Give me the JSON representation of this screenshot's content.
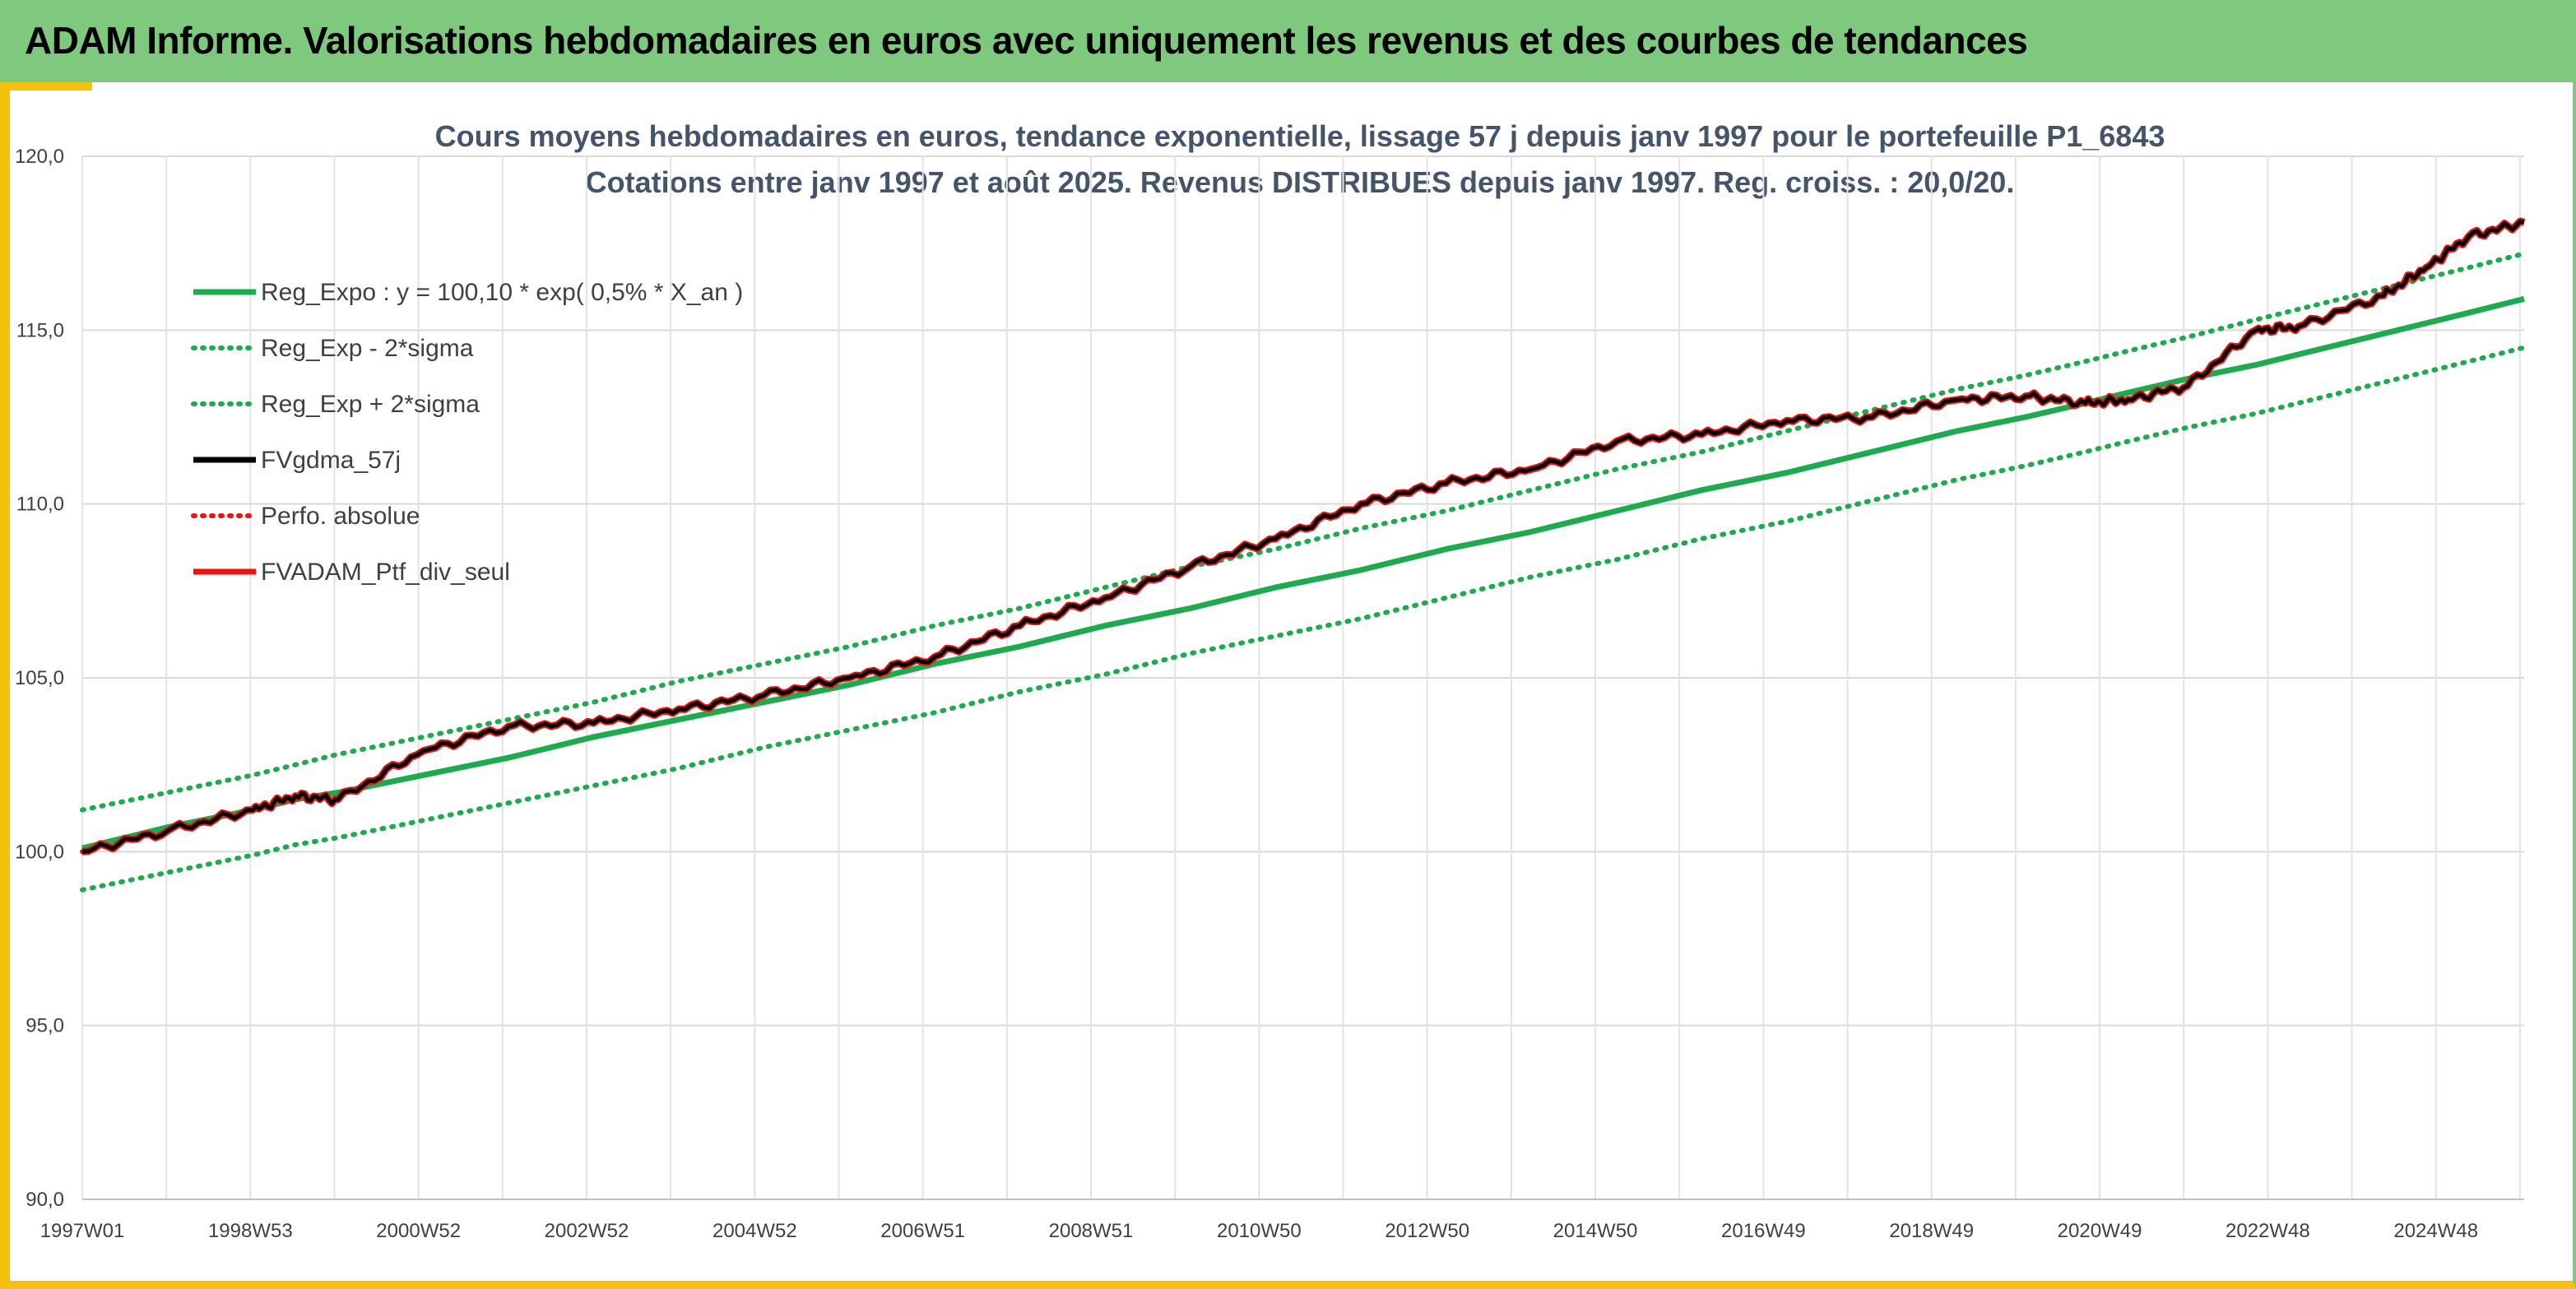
{
  "header": {
    "title": "ADAM Informe. Valorisations hebdomadaires en euros avec uniquement les revenus et des courbes de tendances"
  },
  "colors": {
    "banner": "#7fc97f",
    "frame_accent": "#f4c20d",
    "trend_green": "#1faa4f",
    "series_black": "#000000",
    "series_red": "#ee1111"
  },
  "chart_data": {
    "type": "line",
    "title_line1": "Cours moyens hebdomadaires en euros, tendance exponentielle, lissage 57 j depuis janv 1997 pour le portefeuille P1_6843",
    "title_line2": "Cotations entre janv 1997 et août 2025. Revenus DISTRIBUES depuis janv 1997. Reg. croiss. : 20,0/20.",
    "ylim": [
      90,
      120
    ],
    "y_ticks": [
      "90,0",
      "95,0",
      "100,0",
      "105,0",
      "110,0",
      "115,0",
      "120,0"
    ],
    "x_tick_labels": [
      "1997W01",
      "1998W53",
      "2000W52",
      "2002W52",
      "2004W52",
      "2006W51",
      "2008W51",
      "2010W50",
      "2012W50",
      "2014W50",
      "2016W49",
      "2018W49",
      "2020W49",
      "2022W48",
      "2024W48"
    ],
    "xlim_years": [
      1997.0,
      2025.65
    ],
    "grid": true,
    "legend_position": "top-left",
    "x_years": [
      1997.0,
      1998.0,
      1999.0,
      1999.5,
      2000.0,
      2001.0,
      2002.0,
      2003.0,
      2004.0,
      2005.0,
      2006.0,
      2007.0,
      2008.0,
      2009.0,
      2010.0,
      2011.0,
      2012.0,
      2013.0,
      2014.0,
      2015.0,
      2016.0,
      2017.0,
      2018.0,
      2019.0,
      2019.8,
      2020.5,
      2021.0,
      2021.7,
      2022.5,
      2023.0,
      2024.0,
      2024.5,
      2025.0,
      2025.65
    ],
    "series": [
      {
        "name": "Reg_Expo : y = 100,10 * exp( 0,5% *  X_an )",
        "style": "solid",
        "color": "#1faa4f",
        "values": [
          100.1,
          100.7,
          101.2,
          101.5,
          101.7,
          102.2,
          102.7,
          103.3,
          103.8,
          104.3,
          104.8,
          105.4,
          105.9,
          106.5,
          107.0,
          107.6,
          108.1,
          108.7,
          109.2,
          109.8,
          110.4,
          110.9,
          111.5,
          112.1,
          112.5,
          112.9,
          113.2,
          113.6,
          114.0,
          114.3,
          114.9,
          115.2,
          115.5,
          115.9
        ]
      },
      {
        "name": "Reg_Exp - 2*sigma",
        "style": "dotted",
        "color": "#1faa4f",
        "values": [
          98.9,
          99.4,
          99.9,
          100.2,
          100.4,
          100.9,
          101.4,
          101.9,
          102.4,
          103.0,
          103.5,
          104.0,
          104.6,
          105.1,
          105.7,
          106.2,
          106.7,
          107.3,
          107.9,
          108.4,
          109.0,
          109.5,
          110.1,
          110.7,
          111.1,
          111.5,
          111.8,
          112.2,
          112.6,
          112.9,
          113.5,
          113.8,
          114.1,
          114.5
        ]
      },
      {
        "name": "Reg_Exp + 2*sigma",
        "style": "dotted",
        "color": "#1faa4f",
        "values": [
          101.2,
          101.7,
          102.2,
          102.5,
          102.8,
          103.3,
          103.8,
          104.3,
          104.9,
          105.4,
          105.9,
          106.5,
          107.0,
          107.6,
          108.2,
          108.7,
          109.3,
          109.8,
          110.4,
          111.0,
          111.5,
          112.1,
          112.7,
          113.3,
          113.7,
          114.1,
          114.4,
          114.8,
          115.3,
          115.6,
          116.2,
          116.5,
          116.8,
          117.2
        ]
      },
      {
        "name": "FVgdma_57j",
        "style": "solid",
        "color": "#000000",
        "values": [
          100.0,
          100.6,
          101.2,
          101.6,
          101.5,
          102.9,
          103.6,
          103.7,
          104.1,
          104.5,
          105.0,
          105.6,
          106.5,
          107.3,
          108.2,
          109.0,
          110.0,
          110.6,
          111.0,
          111.8,
          112.0,
          112.4,
          112.5,
          113.0,
          113.1,
          112.9,
          113.0,
          113.4,
          115.0,
          115.1,
          116.0,
          116.8,
          117.7,
          118.1
        ]
      },
      {
        "name": "Perfo. absolue",
        "style": "dotted",
        "color": "#ee1111",
        "values": [
          100.0,
          100.6,
          101.2,
          101.6,
          101.5,
          102.9,
          103.6,
          103.7,
          104.1,
          104.5,
          105.0,
          105.6,
          106.5,
          107.3,
          108.2,
          109.0,
          110.0,
          110.6,
          111.0,
          111.8,
          112.0,
          112.4,
          112.5,
          113.0,
          113.1,
          112.9,
          113.0,
          113.4,
          115.0,
          115.1,
          116.0,
          116.8,
          117.7,
          118.1
        ]
      },
      {
        "name": "FVADAM_Ptf_div_seul",
        "style": "solid",
        "color": "#ee1111",
        "values": [
          100.0,
          100.6,
          101.2,
          101.6,
          101.5,
          102.9,
          103.6,
          103.7,
          104.1,
          104.5,
          105.0,
          105.6,
          106.5,
          107.3,
          108.2,
          109.0,
          110.0,
          110.6,
          111.0,
          111.8,
          112.0,
          112.4,
          112.5,
          113.0,
          113.1,
          112.9,
          113.0,
          113.4,
          115.0,
          115.1,
          116.0,
          116.8,
          117.7,
          118.1
        ]
      }
    ]
  }
}
